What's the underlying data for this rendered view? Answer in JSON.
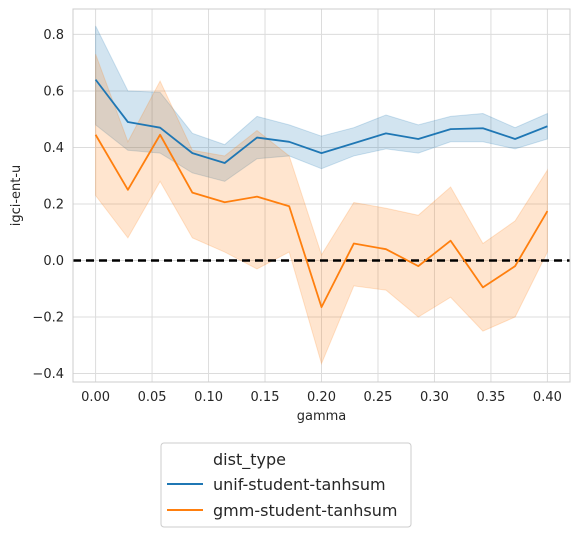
{
  "chart_data": {
    "type": "line",
    "xlabel": "gamma",
    "ylabel": "igci-ent-u",
    "xlim": [
      -0.02,
      0.42
    ],
    "ylim": [
      -0.43,
      0.89
    ],
    "x_ticks": [
      0.0,
      0.05,
      0.1,
      0.15,
      0.2,
      0.25,
      0.3,
      0.35,
      0.4
    ],
    "x_tick_labels": [
      "0.00",
      "0.05",
      "0.10",
      "0.15",
      "0.20",
      "0.25",
      "0.30",
      "0.35",
      "0.40"
    ],
    "y_ticks": [
      -0.4,
      -0.2,
      0.0,
      0.2,
      0.4,
      0.6,
      0.8
    ],
    "y_tick_labels": [
      "−0.4",
      "−0.2",
      "0.0",
      "0.2",
      "0.4",
      "0.6",
      "0.8"
    ],
    "grid": true,
    "reference_line": {
      "y": 0.0,
      "style": "dashed",
      "color": "#000000"
    },
    "x": [
      0.0,
      0.0286,
      0.0571,
      0.0857,
      0.1143,
      0.1429,
      0.1714,
      0.2,
      0.2286,
      0.2571,
      0.2857,
      0.3143,
      0.3429,
      0.3714,
      0.4
    ],
    "series": [
      {
        "name": "unif-student-tanhsum",
        "color": "#1f77b4",
        "values": [
          0.64,
          0.49,
          0.47,
          0.38,
          0.345,
          0.435,
          0.42,
          0.38,
          0.415,
          0.45,
          0.43,
          0.465,
          0.468,
          0.43,
          0.475
        ],
        "lower": [
          0.48,
          0.39,
          0.38,
          0.31,
          0.28,
          0.36,
          0.37,
          0.325,
          0.37,
          0.395,
          0.38,
          0.42,
          0.42,
          0.395,
          0.43
        ],
        "upper": [
          0.83,
          0.6,
          0.595,
          0.45,
          0.41,
          0.51,
          0.48,
          0.44,
          0.47,
          0.515,
          0.48,
          0.51,
          0.52,
          0.47,
          0.52
        ]
      },
      {
        "name": "gmm-student-tanhsum",
        "color": "#ff7f0e",
        "values": [
          0.445,
          0.25,
          0.445,
          0.24,
          0.206,
          0.226,
          0.192,
          -0.165,
          0.06,
          0.04,
          -0.02,
          0.07,
          -0.095,
          -0.02,
          0.175
        ],
        "lower": [
          0.23,
          0.08,
          0.28,
          0.08,
          0.03,
          -0.03,
          0.03,
          -0.365,
          -0.09,
          -0.105,
          -0.2,
          -0.13,
          -0.25,
          -0.2,
          0.03
        ],
        "upper": [
          0.73,
          0.42,
          0.635,
          0.39,
          0.37,
          0.46,
          0.37,
          0.02,
          0.205,
          0.185,
          0.16,
          0.26,
          0.06,
          0.14,
          0.32
        ]
      }
    ],
    "legend": {
      "title": "dist_type",
      "placement": "bottom-center, below chart"
    }
  }
}
